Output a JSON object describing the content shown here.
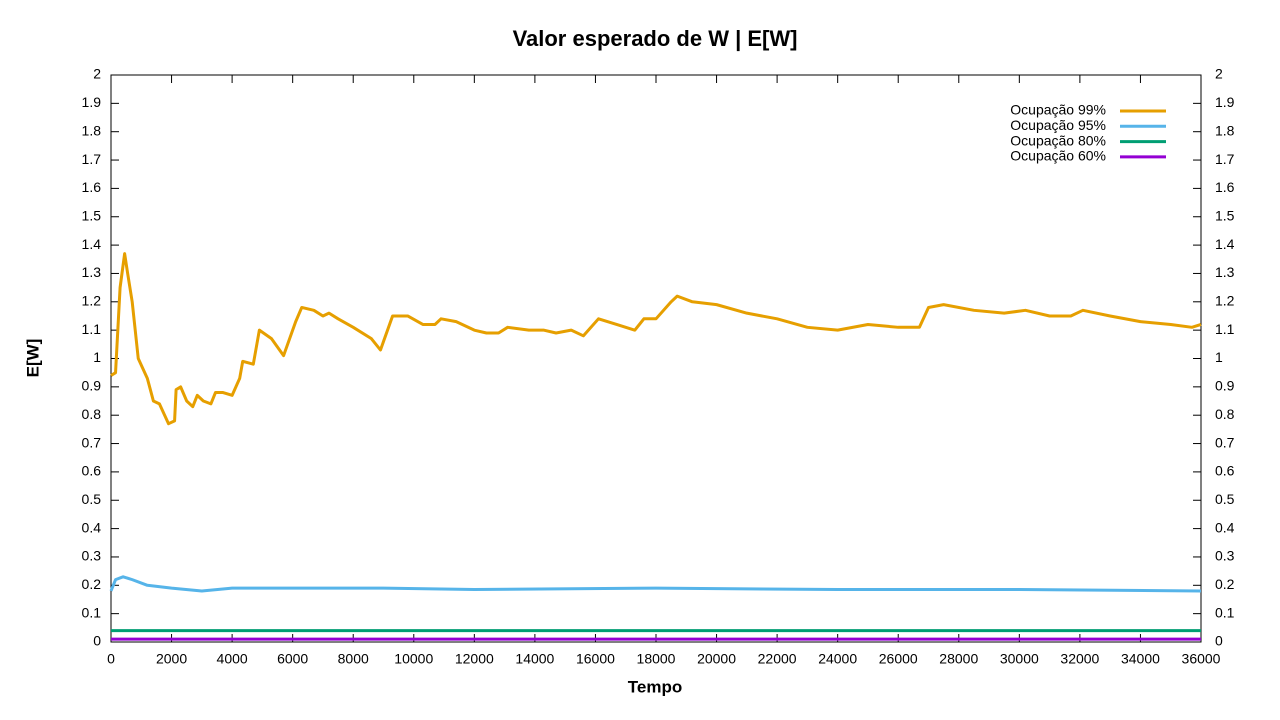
{
  "chart_data": {
    "type": "line",
    "title": "Valor esperado de W | E[W]",
    "xlabel": "Tempo",
    "ylabel": "E[W]",
    "xlim": [
      0,
      36000
    ],
    "xticks": [
      0,
      2000,
      4000,
      6000,
      8000,
      10000,
      12000,
      14000,
      16000,
      18000,
      20000,
      22000,
      24000,
      26000,
      28000,
      30000,
      32000,
      34000,
      36000
    ],
    "ylim": [
      0,
      2
    ],
    "yticks": [
      0,
      0.1,
      0.2,
      0.3,
      0.4,
      0.5,
      0.6,
      0.7,
      0.8,
      0.9,
      1,
      1.1,
      1.2,
      1.3,
      1.4,
      1.5,
      1.6,
      1.7,
      1.8,
      1.9,
      2
    ],
    "y2lim": [
      0,
      2
    ],
    "y2ticks": [
      0,
      0.1,
      0.2,
      0.3,
      0.4,
      0.5,
      0.6,
      0.7,
      0.8,
      0.9,
      1,
      1.1,
      1.2,
      1.3,
      1.4,
      1.5,
      1.6,
      1.7,
      1.8,
      1.9,
      2
    ],
    "grid": false,
    "legend": "top-right",
    "series": [
      {
        "name": "Ocupação 99%",
        "color": "#e69f00",
        "x": [
          0,
          150,
          300,
          450,
          550,
          700,
          900,
          1200,
          1400,
          1600,
          1900,
          2100,
          2150,
          2300,
          2500,
          2700,
          2850,
          3050,
          3300,
          3450,
          3700,
          4000,
          4250,
          4350,
          4700,
          4900,
          5300,
          5700,
          6100,
          6300,
          6700,
          7000,
          7200,
          7500,
          8000,
          8600,
          8900,
          9300,
          9800,
          10300,
          10700,
          10900,
          11400,
          12000,
          12400,
          12800,
          13100,
          13800,
          14300,
          14700,
          15200,
          15600,
          16100,
          16700,
          17300,
          17600,
          18000,
          18500,
          18700,
          19200,
          20000,
          21000,
          22000,
          23000,
          24000,
          25000,
          26000,
          26700,
          27000,
          27500,
          28500,
          29500,
          30200,
          31000,
          31700,
          32100,
          33000,
          34000,
          35000,
          35700,
          36000
        ],
        "values": [
          0.94,
          0.95,
          1.25,
          1.37,
          1.3,
          1.2,
          1.0,
          0.93,
          0.85,
          0.84,
          0.77,
          0.78,
          0.89,
          0.9,
          0.85,
          0.83,
          0.87,
          0.85,
          0.84,
          0.88,
          0.88,
          0.87,
          0.93,
          0.99,
          0.98,
          1.1,
          1.07,
          1.01,
          1.13,
          1.18,
          1.17,
          1.15,
          1.16,
          1.14,
          1.11,
          1.07,
          1.03,
          1.15,
          1.15,
          1.12,
          1.12,
          1.14,
          1.13,
          1.1,
          1.09,
          1.09,
          1.11,
          1.1,
          1.1,
          1.09,
          1.1,
          1.08,
          1.14,
          1.12,
          1.1,
          1.14,
          1.14,
          1.2,
          1.22,
          1.2,
          1.19,
          1.16,
          1.14,
          1.11,
          1.1,
          1.12,
          1.11,
          1.11,
          1.18,
          1.19,
          1.17,
          1.16,
          1.17,
          1.15,
          1.15,
          1.17,
          1.15,
          1.13,
          1.12,
          1.11,
          1.12
        ]
      },
      {
        "name": "Ocupação 95%",
        "color": "#56b4e9",
        "x": [
          0,
          150,
          400,
          700,
          1200,
          2000,
          3000,
          4000,
          6000,
          9000,
          12000,
          18000,
          24000,
          30000,
          36000
        ],
        "values": [
          0.18,
          0.22,
          0.23,
          0.22,
          0.2,
          0.19,
          0.18,
          0.19,
          0.19,
          0.19,
          0.185,
          0.19,
          0.185,
          0.185,
          0.18
        ]
      },
      {
        "name": "Ocupação 80%",
        "color": "#009e73",
        "x": [
          0,
          36000
        ],
        "values": [
          0.04,
          0.04
        ]
      },
      {
        "name": "Ocupação 60%",
        "color": "#9400d3",
        "x": [
          0,
          36000
        ],
        "values": [
          0.01,
          0.01
        ]
      }
    ]
  }
}
